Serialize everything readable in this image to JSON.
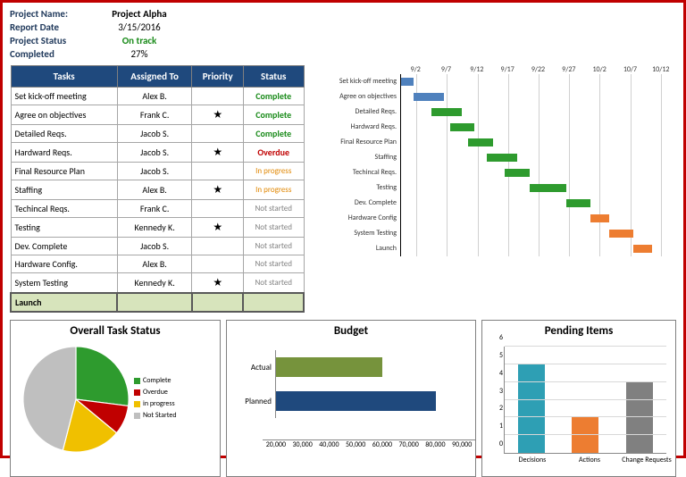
{
  "header": {
    "project_name_label": "Project Name:",
    "project_name": "Project Alpha",
    "report_date_label": "Report Date",
    "report_date": "3/15/2016",
    "status_label": "Project Status",
    "status": "On track",
    "completed_label": "Completed",
    "completed": "27%"
  },
  "task_table": {
    "cols": [
      "Tasks",
      "Assigned To",
      "Priority",
      "Status"
    ],
    "rows": [
      {
        "task": "Set kick-off meeting",
        "assigned": "Alex B.",
        "priority": false,
        "status": "Complete"
      },
      {
        "task": "Agree on objectives",
        "assigned": "Frank C.",
        "priority": true,
        "status": "Complete"
      },
      {
        "task": "Detailed Reqs.",
        "assigned": "Jacob S.",
        "priority": false,
        "status": "Complete"
      },
      {
        "task": "Hardward Reqs.",
        "assigned": "Jacob S.",
        "priority": true,
        "status": "Overdue"
      },
      {
        "task": "Final Resource Plan",
        "assigned": "Jacob S.",
        "priority": false,
        "status": "In progress"
      },
      {
        "task": "Staffing",
        "assigned": "Alex B.",
        "priority": true,
        "status": "In progress"
      },
      {
        "task": "Techincal Reqs.",
        "assigned": "Frank C.",
        "priority": false,
        "status": "Not started"
      },
      {
        "task": "Testing",
        "assigned": "Kennedy K.",
        "priority": true,
        "status": "Not started"
      },
      {
        "task": "Dev. Complete",
        "assigned": "Jacob S.",
        "priority": false,
        "status": "Not started"
      },
      {
        "task": "Hardware Config.",
        "assigned": "Alex B.",
        "priority": false,
        "status": "Not started"
      },
      {
        "task": "System Testing",
        "assigned": "Kennedy K.",
        "priority": true,
        "status": "Not started"
      }
    ],
    "launch_row": "Launch"
  },
  "gantt": {
    "ticks": [
      "9/2",
      "9/7",
      "9/12",
      "9/17",
      "9/22",
      "9/27",
      "10/2",
      "10/7",
      "10/12"
    ],
    "range_days": 45,
    "rows": [
      {
        "label": "Set kick-off meeting",
        "start": 0,
        "dur": 2,
        "color": "#4f81bd"
      },
      {
        "label": "Agree on objectives",
        "start": 2,
        "dur": 5,
        "color": "#4f81bd"
      },
      {
        "label": "Detailed Reqs.",
        "start": 5,
        "dur": 5,
        "color": "#2e9b2e"
      },
      {
        "label": "Hardward Reqs.",
        "start": 8,
        "dur": 4,
        "color": "#2e9b2e"
      },
      {
        "label": "Final Resource Plan",
        "start": 11,
        "dur": 4,
        "color": "#2e9b2e"
      },
      {
        "label": "Staffing",
        "start": 14,
        "dur": 5,
        "color": "#2e9b2e"
      },
      {
        "label": "Techincal Reqs.",
        "start": 17,
        "dur": 4,
        "color": "#2e9b2e"
      },
      {
        "label": "Testing",
        "start": 21,
        "dur": 6,
        "color": "#2e9b2e"
      },
      {
        "label": "Dev. Complete",
        "start": 27,
        "dur": 4,
        "color": "#2e9b2e"
      },
      {
        "label": "Hardware Config",
        "start": 31,
        "dur": 3,
        "color": "#ed7d31"
      },
      {
        "label": "System Testing",
        "start": 34,
        "dur": 4,
        "color": "#ed7d31"
      },
      {
        "label": "Launch",
        "start": 38,
        "dur": 3,
        "color": "#ed7d31"
      }
    ]
  },
  "pie": {
    "title": "Overall Task Status",
    "slices": [
      {
        "label": "Complete",
        "value": 27,
        "color": "#2e9b2e"
      },
      {
        "label": "Overdue",
        "value": 9,
        "color": "#c00000"
      },
      {
        "label": "in progress",
        "value": 18,
        "color": "#f0c000"
      },
      {
        "label": "Not Started",
        "value": 46,
        "color": "#bfbfbf"
      }
    ]
  },
  "budget": {
    "title": "Budget",
    "xmin": 20000,
    "xmax": 90000,
    "xstep": 10000,
    "bars": [
      {
        "label": "Actual",
        "value": 60000,
        "color": "#76933c"
      },
      {
        "label": "Planned",
        "value": 80000,
        "color": "#1f497d"
      }
    ],
    "xticks": [
      "20,000",
      "30,000",
      "40,000",
      "50,000",
      "60,000",
      "70,000",
      "80,000",
      "90,000"
    ]
  },
  "pending": {
    "title": "Pending Items",
    "ymax": 6,
    "bars": [
      {
        "label": "Decisions",
        "value": 5,
        "color": "#2e9fb4"
      },
      {
        "label": "Actions",
        "value": 2,
        "color": "#ed7d31"
      },
      {
        "label": "Change Requests",
        "value": 4,
        "color": "#808080"
      }
    ]
  }
}
